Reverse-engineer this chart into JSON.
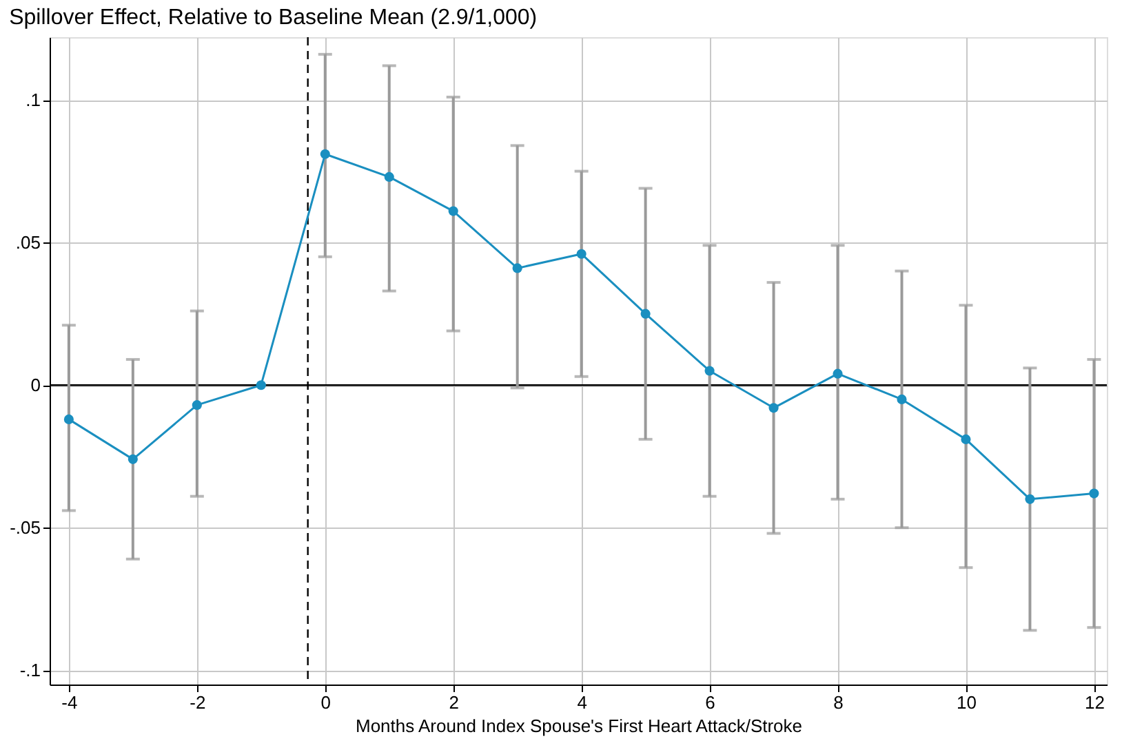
{
  "chart_data": {
    "type": "line",
    "title": "Spillover Effect, Relative to Baseline Mean (2.9/1,000)",
    "xlabel": "Months Around Index Spouse's First Heart Attack/Stroke",
    "x": [
      -4,
      -3,
      -2,
      -1,
      0,
      1,
      2,
      3,
      4,
      5,
      6,
      7,
      8,
      9,
      10,
      11,
      12
    ],
    "series": [
      {
        "color": "#1a8fc0",
        "values": [
          -0.012,
          -0.026,
          -0.007,
          0,
          0.081,
          0.073,
          0.061,
          0.041,
          0.046,
          0.025,
          0.005,
          -0.008,
          0.004,
          -0.005,
          -0.019,
          -0.04,
          -0.038
        ],
        "errors": [
          [
            -0.044,
            0.021
          ],
          [
            -0.061,
            0.009
          ],
          [
            -0.039,
            0.026
          ],
          null,
          [
            0.045,
            0.116
          ],
          [
            0.033,
            0.112
          ],
          [
            0.019,
            0.101
          ],
          [
            -0.001,
            0.084
          ],
          [
            0.003,
            0.075
          ],
          [
            -0.019,
            0.069
          ],
          [
            -0.039,
            0.049
          ],
          [
            -0.052,
            0.036
          ],
          [
            -0.04,
            0.049
          ],
          [
            -0.05,
            0.04
          ],
          [
            -0.064,
            0.028
          ],
          [
            -0.086,
            0.006
          ],
          [
            -0.085,
            0.009
          ]
        ]
      }
    ],
    "xlim": [
      -4.3,
      12.2
    ],
    "ylim": [
      -0.105,
      0.122
    ],
    "xticks": [
      -4,
      -2,
      0,
      2,
      4,
      6,
      8,
      10,
      12
    ],
    "yticks": [
      {
        "value": -0.1,
        "label": "-.1"
      },
      {
        "value": -0.05,
        "label": "-.05"
      },
      {
        "value": 0,
        "label": "0"
      },
      {
        "value": 0.05,
        "label": ".05"
      },
      {
        "value": 0.1,
        "label": ".1"
      }
    ],
    "ref_lines": [
      {
        "axis": "x",
        "value": -0.27,
        "color": "#000000",
        "line_style": "dashed"
      },
      {
        "axis": "y",
        "value": 0,
        "color": "#000000",
        "line_style": "solid"
      }
    ],
    "grid": true,
    "marker": "circle",
    "line_style": "solid"
  }
}
